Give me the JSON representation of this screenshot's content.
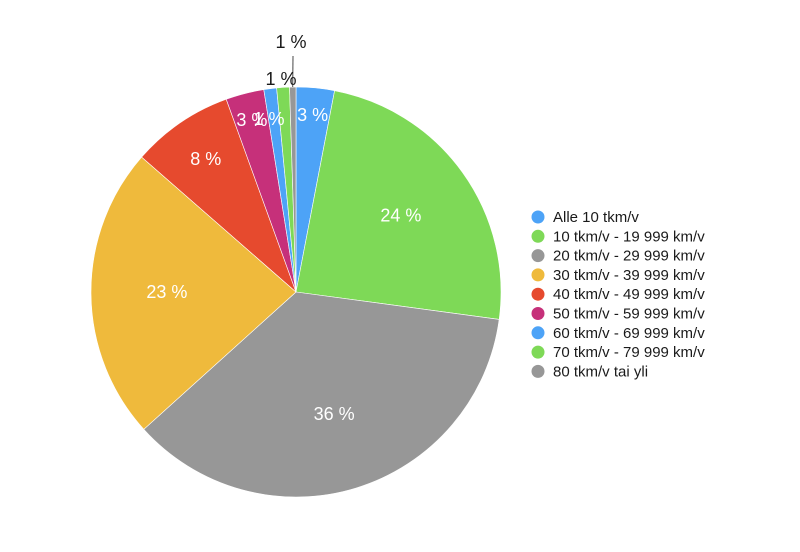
{
  "chart_data": {
    "type": "pie",
    "title": "",
    "categories": [
      "Alle 10 tkm/v",
      "10 tkm/v - 19 999 km/v",
      "20 tkm/v - 29 999 km/v",
      "30 tkm/v - 39 999 km/v",
      "40 tkm/v - 49 999 km/v",
      "50 tkm/v - 59 999 km/v",
      "60 tkm/v - 69 999 km/v",
      "70 tkm/v - 79 999 km/v",
      "80 tkm/v tai yli"
    ],
    "values": [
      3,
      24,
      36,
      23,
      8,
      3,
      1,
      1,
      0.5
    ],
    "data_labels": [
      "3 %",
      "24 %",
      "36 %",
      "23 %",
      "8 %",
      "3 %",
      "1 %",
      "1 %",
      "1 %"
    ],
    "colors": [
      "#4da3f7",
      "#7ed957",
      "#979797",
      "#efba3c",
      "#e64a2e",
      "#c6307a",
      "#4da3f7",
      "#7ed957",
      "#979797"
    ],
    "legend_position": "right",
    "start_angle": "top",
    "direction": "clockwise"
  }
}
